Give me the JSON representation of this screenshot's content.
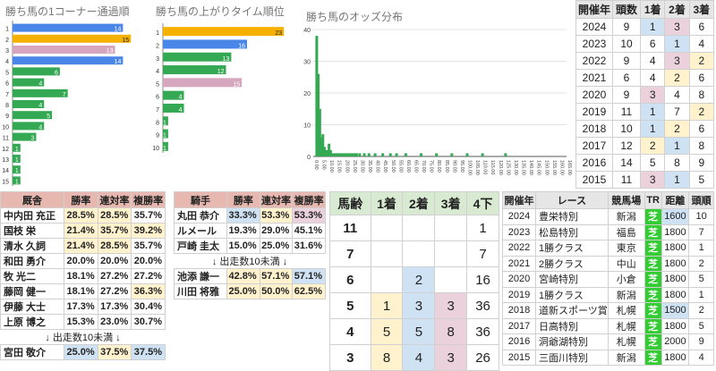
{
  "charts": {
    "corner": {
      "title": "勝ち馬の1コーナー通過順",
      "categories": [
        "1",
        "2",
        "3",
        "4",
        "5",
        "6",
        "7",
        "8",
        "9",
        "10",
        "11",
        "12",
        "13",
        "14",
        "15"
      ],
      "bars": [
        {
          "value": 14,
          "label": "14",
          "color": "#4a86e8"
        },
        {
          "value": 15,
          "label": "15",
          "color": "#f6b100"
        },
        {
          "value": 13,
          "label": "13",
          "color": "#d5a6bd"
        },
        {
          "value": 14,
          "label": "14",
          "color": "#4a86e8"
        },
        {
          "value": 6,
          "label": "6",
          "color": "#34a853"
        },
        {
          "value": 4,
          "label": "4",
          "color": "#34a853"
        },
        {
          "value": 7,
          "label": "7",
          "color": "#34a853"
        },
        {
          "value": 4,
          "label": "4",
          "color": "#34a853"
        },
        {
          "value": 5,
          "label": "5",
          "color": "#34a853"
        },
        {
          "value": 4,
          "label": "4",
          "color": "#34a853"
        },
        {
          "value": 3,
          "label": "3",
          "color": "#34a853"
        },
        {
          "value": 1,
          "label": "1",
          "color": "#34a853"
        },
        {
          "value": 1,
          "label": "1",
          "color": "#34a853"
        },
        {
          "value": 1,
          "label": "1",
          "color": "#34a853"
        },
        {
          "value": 1,
          "label": "1",
          "color": "#34a853"
        }
      ],
      "max": 16
    },
    "agari": {
      "title": "勝ち馬の上がりタイム順位",
      "categories": [
        "1",
        "2",
        "3",
        "4",
        "5",
        "6",
        "7",
        "8",
        "9",
        "10"
      ],
      "bars": [
        {
          "value": 23,
          "label": "23",
          "color": "#f6b100"
        },
        {
          "value": 16,
          "label": "16",
          "color": "#4a86e8"
        },
        {
          "value": 13,
          "label": "13",
          "color": "#34a853"
        },
        {
          "value": 12,
          "label": "12",
          "color": "#34a853"
        },
        {
          "value": 15,
          "label": "15",
          "color": "#d5a6bd"
        },
        {
          "value": 4,
          "label": "4",
          "color": "#34a853"
        },
        {
          "value": 4,
          "label": "4",
          "color": "#34a853"
        },
        {
          "value": 1,
          "label": "1",
          "color": "#34a853"
        },
        {
          "value": 1,
          "label": "1",
          "color": "#34a853"
        },
        {
          "value": 1,
          "label": "1",
          "color": "#34a853"
        }
      ],
      "max": 24
    },
    "odds": {
      "title": "勝ち馬のオッズ分布",
      "yticks": [
        "0",
        "10",
        "20",
        "30",
        "40"
      ],
      "ymax": 40,
      "xticks": [
        "0.00",
        "5.00",
        "10.00",
        "15.00",
        "20.00",
        "25.00",
        "30.00",
        "35.00",
        "40.00",
        "45.00",
        "50.00",
        "55.00",
        "60.00",
        "65.00",
        "70.00",
        "75.00",
        "80.00",
        "85.00",
        "90.00",
        "95.00",
        "100.00",
        "105.00",
        "110.00",
        "115.00",
        "120.00",
        "125.00",
        "130.00",
        "135.00",
        "140.00",
        "145.00",
        "150.00",
        "155.00",
        "160.00",
        "165.00"
      ],
      "x": [
        2,
        3,
        4,
        5,
        6,
        7,
        8,
        9,
        10,
        11,
        12,
        13,
        14,
        15,
        16,
        17,
        18,
        19,
        20,
        21,
        22,
        23,
        24,
        25,
        26,
        27,
        28,
        30,
        33,
        36,
        40,
        45,
        50,
        54,
        60,
        70,
        80,
        90,
        100,
        110,
        125
      ],
      "values": [
        38,
        26,
        15,
        6,
        7,
        3,
        2,
        2,
        4,
        2,
        1,
        1,
        1,
        1,
        1,
        1,
        1,
        1,
        1,
        1,
        1,
        1,
        1,
        1,
        1,
        1,
        1,
        1,
        1,
        1,
        1,
        1,
        1,
        1,
        1,
        1,
        1,
        1,
        1,
        1,
        1
      ],
      "color": "#34a853"
    }
  },
  "yearTable": {
    "headers": [
      "開催年",
      "頭数",
      "1着",
      "2着",
      "3着"
    ],
    "rows": [
      [
        "2024",
        "9",
        "1",
        "3",
        "6"
      ],
      [
        "2023",
        "10",
        "6",
        "1",
        "4"
      ],
      [
        "2022",
        "9",
        "4",
        "3",
        "2"
      ],
      [
        "2021",
        "6",
        "4",
        "2",
        "6"
      ],
      [
        "2020",
        "9",
        "3",
        "4",
        "8"
      ],
      [
        "2019",
        "11",
        "1",
        "7",
        "2"
      ],
      [
        "2018",
        "10",
        "1",
        "2",
        "6"
      ],
      [
        "2017",
        "12",
        "2",
        "1",
        "8"
      ],
      [
        "2016",
        "14",
        "5",
        "8",
        "9"
      ],
      [
        "2015",
        "11",
        "3",
        "1",
        "5"
      ]
    ]
  },
  "trainerTable": {
    "headers": [
      "厩舎",
      "勝率",
      "連対率",
      "複勝率"
    ],
    "rows": [
      [
        "中内田 充正",
        "28.5%",
        "28.5%",
        "35.7%"
      ],
      [
        "国枝 栄",
        "21.4%",
        "35.7%",
        "39.2%"
      ],
      [
        "清水 久詞",
        "21.4%",
        "28.5%",
        "35.7%"
      ],
      [
        "和田 勇介",
        "20.0%",
        "20.0%",
        "20.0%"
      ],
      [
        "牧 光二",
        "18.1%",
        "27.2%",
        "27.2%"
      ],
      [
        "藤岡 健一",
        "18.1%",
        "27.2%",
        "36.3%"
      ],
      [
        "伊藤 大士",
        "17.3%",
        "17.3%",
        "30.4%"
      ],
      [
        "上原 博之",
        "15.3%",
        "23.0%",
        "30.7%"
      ]
    ],
    "note": "↓ 出走数10未満 ↓",
    "extra": [
      "宮田 敬介",
      "25.0%",
      "37.5%",
      "37.5%"
    ]
  },
  "jockeyTable": {
    "headers": [
      "騎手",
      "勝率",
      "連対率",
      "複勝率"
    ],
    "rows": [
      [
        "丸田 恭介",
        "33.3%",
        "53.3%",
        "53.3%"
      ],
      [
        "ルメール",
        "19.3%",
        "29.0%",
        "45.1%"
      ],
      [
        "戸崎 圭太",
        "15.0%",
        "25.0%",
        "31.6%"
      ]
    ],
    "note": "↓ 出走数10未満 ↓",
    "extra": [
      [
        "池添 謙一",
        "42.8%",
        "57.1%",
        "57.1%"
      ],
      [
        "川田 将雅",
        "25.0%",
        "50.0%",
        "62.5%"
      ]
    ]
  },
  "ageTable": {
    "headers": [
      "馬齢",
      "1着",
      "2着",
      "3着",
      "4下"
    ],
    "rows": [
      [
        "11",
        "",
        "",
        "",
        "1"
      ],
      [
        "7",
        "",
        "",
        "",
        "7"
      ],
      [
        "6",
        "",
        "2",
        "",
        "16"
      ],
      [
        "5",
        "1",
        "3",
        "3",
        "36"
      ],
      [
        "4",
        "5",
        "5",
        "8",
        "36"
      ],
      [
        "3",
        "8",
        "4",
        "3",
        "26"
      ]
    ]
  },
  "raceTable": {
    "headers": [
      "開催年",
      "レース",
      "競馬場",
      "TR",
      "距離",
      "頭順"
    ],
    "rows": [
      [
        "2024",
        "豊栄特別",
        "新潟",
        "芝",
        "1600",
        "10"
      ],
      [
        "2023",
        "松島特別",
        "福島",
        "芝",
        "1800",
        "7"
      ],
      [
        "2022",
        "1勝クラス",
        "東京",
        "芝",
        "1800",
        "1"
      ],
      [
        "2021",
        "2勝クラス",
        "中山",
        "芝",
        "1800",
        "2"
      ],
      [
        "2020",
        "宮崎特別",
        "小倉",
        "芝",
        "1800",
        "5"
      ],
      [
        "2019",
        "1勝クラス",
        "新潟",
        "芝",
        "1800",
        "1"
      ],
      [
        "2018",
        "道新スポーツ賞",
        "札幌",
        "芝",
        "1500",
        "2"
      ],
      [
        "2017",
        "日高特別",
        "札幌",
        "芝",
        "1800",
        "5"
      ],
      [
        "2016",
        "洞爺湖特別",
        "札幌",
        "芝",
        "2000",
        "9"
      ],
      [
        "2015",
        "三面川特別",
        "新潟",
        "芝",
        "1800",
        "4"
      ]
    ]
  }
}
